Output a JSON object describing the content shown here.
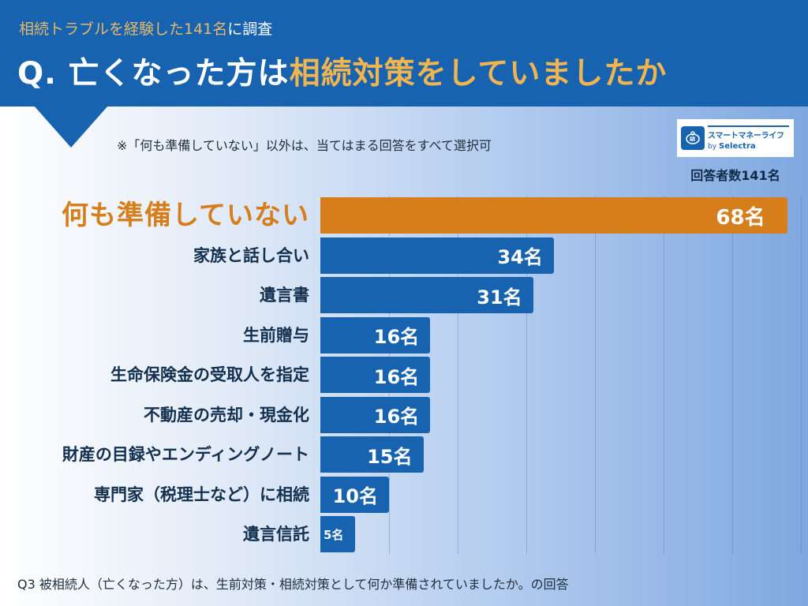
{
  "header": {
    "subtitle_main": "相続トラブルを経験した141名",
    "subtitle_suffix": "に調査",
    "title_prefix": "Q. 亡くなった方は",
    "title_highlight": "相続対策をしていましたか"
  },
  "note": "※「何も準備していない」以外は、当てはまる回答をすべて選択可",
  "logo": {
    "name": "スマートマネーライフ",
    "by": "by",
    "brand": "Selectra",
    "icon": "piggy-bank-icon"
  },
  "respondents": "回答者数141名",
  "footer": "Q3 被相続人（亡くなった方）は、生前対策・相続対策として何か準備されていましたか。の回答",
  "colors": {
    "header_blue": "#1763b0",
    "highlight_orange": "#d67e1c",
    "title_gold": "#f0b450",
    "bar_blue": "#1763b0"
  },
  "chart_data": {
    "type": "bar",
    "orientation": "horizontal",
    "title": "Q. 亡くなった方は相続対策をしていましたか",
    "subtitle": "相続トラブルを経験した141名に調査",
    "unit": "名",
    "categories": [
      "何も準備していない",
      "家族と話し合い",
      "遺言書",
      "生前贈与",
      "生命保険金の受取人を指定",
      "不動産の売却・現金化",
      "財産の目録やエンディングノート",
      "専門家（税理士など）に相続",
      "遺言信託"
    ],
    "values": [
      68,
      34,
      31,
      16,
      16,
      16,
      15,
      10,
      5
    ],
    "value_labels": [
      "68名",
      "34名",
      "31名",
      "16名",
      "16名",
      "16名",
      "15名",
      "10名",
      "5名"
    ],
    "highlight_index": 0,
    "xlim": [
      0,
      70
    ],
    "grid": true,
    "grid_step": 10,
    "xlabel": "",
    "ylabel": "",
    "legend": null
  }
}
